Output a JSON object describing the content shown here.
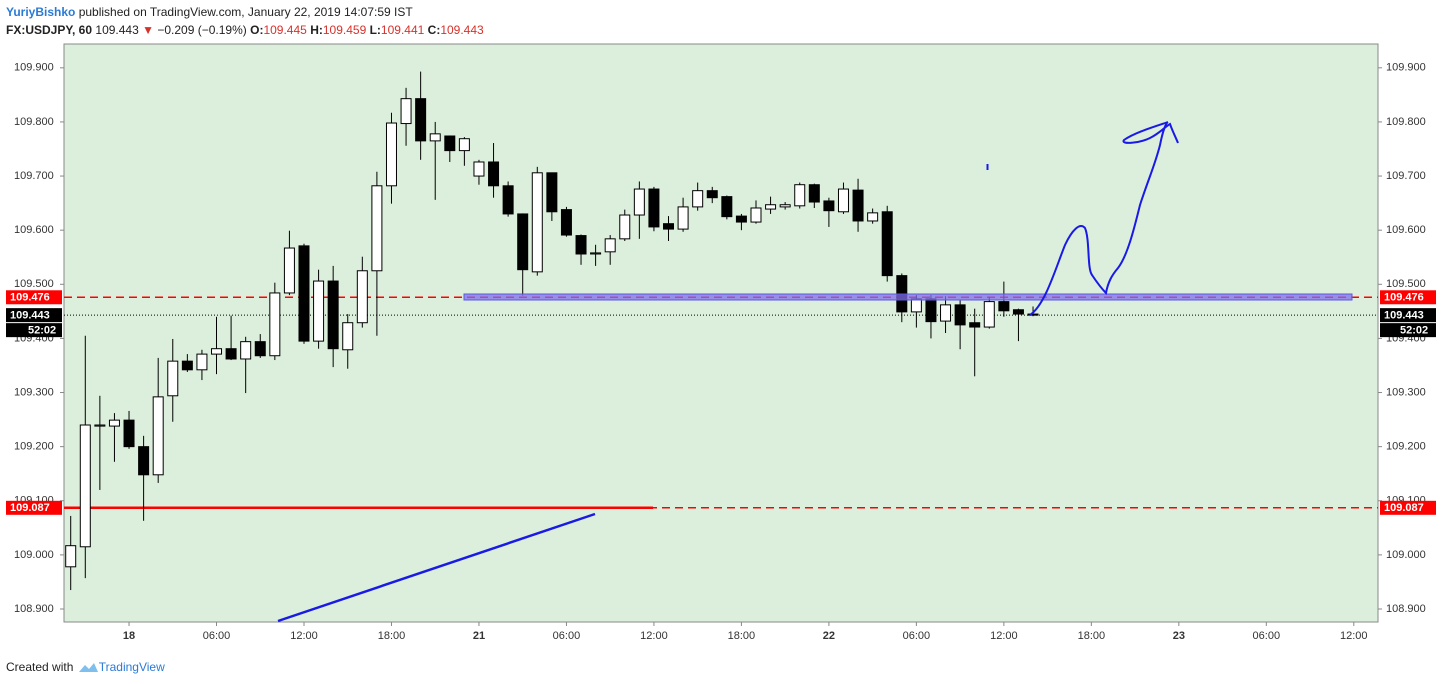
{
  "header": {
    "author": "YuriyBishko",
    "published": "published on TradingView.com, January 22, 2019 14:07:59 IST",
    "symbol": "FX:USDJPY, 60",
    "last": "109.443",
    "arrow": "▼",
    "change": "−0.209 (−0.19%)",
    "ohlc": [
      {
        "label": "O:",
        "value": "109.445"
      },
      {
        "label": "H:",
        "value": "109.459"
      },
      {
        "label": "L:",
        "value": "109.441"
      },
      {
        "label": "C:",
        "value": "109.443"
      }
    ]
  },
  "footer": {
    "text": "Created with",
    "brand": "TradingView"
  },
  "chart_data": {
    "type": "candlestick",
    "x": [
      -4,
      -3,
      -2,
      -1,
      0,
      1,
      2,
      3,
      4,
      5,
      6,
      7,
      8,
      9,
      10,
      11,
      12,
      13,
      14,
      15,
      16,
      17,
      18,
      19,
      20,
      21,
      22,
      23,
      24,
      25,
      26,
      27,
      28,
      29,
      30,
      31,
      32,
      33,
      34,
      35,
      36,
      37,
      38,
      39,
      40,
      41,
      42,
      43,
      44,
      45,
      46,
      47,
      48,
      49,
      50,
      51,
      52,
      53,
      54,
      55,
      56,
      57,
      58,
      59,
      60,
      61,
      62
    ],
    "open": [
      108.978,
      109.015,
      109.238,
      109.238,
      109.249,
      109.2,
      109.148,
      109.294,
      109.358,
      109.342,
      109.371,
      109.381,
      109.362,
      109.394,
      109.368,
      109.484,
      109.571,
      109.395,
      109.506,
      109.379,
      109.429,
      109.525,
      109.682,
      109.797,
      109.843,
      109.765,
      109.774,
      109.747,
      109.7,
      109.726,
      109.682,
      109.63,
      109.523,
      109.706,
      109.638,
      109.59,
      109.556,
      109.56,
      109.584,
      109.628,
      109.676,
      109.612,
      109.602,
      109.643,
      109.673,
      109.662,
      109.626,
      109.615,
      109.639,
      109.643,
      109.645,
      109.684,
      109.654,
      109.634,
      109.674,
      109.617,
      109.634,
      109.516,
      109.449,
      109.473,
      109.432,
      109.462,
      109.429,
      109.421,
      109.468,
      109.453,
      109.445
    ],
    "high": [
      109.072,
      109.405,
      109.294,
      109.262,
      109.266,
      109.22,
      109.364,
      109.399,
      109.371,
      109.379,
      109.44,
      109.442,
      109.403,
      109.408,
      109.503,
      109.599,
      109.575,
      109.527,
      109.534,
      109.445,
      109.551,
      109.708,
      109.817,
      109.863,
      109.893,
      109.8,
      109.775,
      109.772,
      109.73,
      109.761,
      109.69,
      109.631,
      109.717,
      109.706,
      109.643,
      109.592,
      109.573,
      109.591,
      109.638,
      109.69,
      109.68,
      109.626,
      109.66,
      109.688,
      109.68,
      109.664,
      109.63,
      109.655,
      109.662,
      109.652,
      109.688,
      109.686,
      109.66,
      109.688,
      109.695,
      109.64,
      109.645,
      109.52,
      109.48,
      109.48,
      109.478,
      109.47,
      109.455,
      109.476,
      109.505,
      109.455,
      109.459
    ],
    "low": [
      108.935,
      108.957,
      109.12,
      109.172,
      109.196,
      109.063,
      109.133,
      109.246,
      109.338,
      109.323,
      109.334,
      109.36,
      109.299,
      109.364,
      109.36,
      109.48,
      109.39,
      109.381,
      109.347,
      109.344,
      109.42,
      109.405,
      109.649,
      109.756,
      109.73,
      109.656,
      109.726,
      109.719,
      109.684,
      109.66,
      109.625,
      109.479,
      109.516,
      109.617,
      109.588,
      109.536,
      109.534,
      109.536,
      109.58,
      109.584,
      109.598,
      109.58,
      109.597,
      109.636,
      109.65,
      109.62,
      109.6,
      109.612,
      109.63,
      109.638,
      109.64,
      109.641,
      109.606,
      109.63,
      109.597,
      109.612,
      109.505,
      109.43,
      109.42,
      109.4,
      109.41,
      109.38,
      109.33,
      109.418,
      109.44,
      109.395,
      109.441
    ],
    "close": [
      109.017,
      109.24,
      109.24,
      109.249,
      109.2,
      109.148,
      109.292,
      109.358,
      109.342,
      109.371,
      109.381,
      109.362,
      109.394,
      109.368,
      109.484,
      109.567,
      109.395,
      109.506,
      109.381,
      109.429,
      109.525,
      109.682,
      109.798,
      109.843,
      109.765,
      109.778,
      109.747,
      109.769,
      109.726,
      109.682,
      109.63,
      109.527,
      109.706,
      109.634,
      109.591,
      109.556,
      109.558,
      109.584,
      109.628,
      109.676,
      109.606,
      109.602,
      109.643,
      109.673,
      109.66,
      109.625,
      109.615,
      109.641,
      109.647,
      109.647,
      109.684,
      109.652,
      109.636,
      109.676,
      109.617,
      109.632,
      109.516,
      109.449,
      109.473,
      109.431,
      109.462,
      109.425,
      109.421,
      109.468,
      109.451,
      109.445,
      109.443
    ],
    "up_color": "#ffffff",
    "down_color": "#000000",
    "xlim": [
      -4.46,
      85.66
    ],
    "xticks": [
      {
        "value": 0,
        "label": "18"
      },
      {
        "value": 6,
        "label": "06:00"
      },
      {
        "value": 12,
        "label": "12:00"
      },
      {
        "value": 18,
        "label": "18:00"
      },
      {
        "value": 24,
        "label": "21"
      },
      {
        "value": 30,
        "label": "06:00"
      },
      {
        "value": 36,
        "label": "12:00"
      },
      {
        "value": 42,
        "label": "18:00"
      },
      {
        "value": 48,
        "label": "22"
      },
      {
        "value": 54,
        "label": "06:00"
      },
      {
        "value": 60,
        "label": "12:00"
      },
      {
        "value": 66,
        "label": "18:00"
      },
      {
        "value": 72,
        "label": "23"
      },
      {
        "value": 78,
        "label": "06:00"
      },
      {
        "value": 84,
        "label": "12:00"
      }
    ],
    "ylim": [
      108.876,
      109.944
    ],
    "yticks": [
      {
        "value": 108.9,
        "label": "108.900"
      },
      {
        "value": 109,
        "label": "109.000"
      },
      {
        "value": 109.1,
        "label": "109.100"
      },
      {
        "value": 109.2,
        "label": "109.200"
      },
      {
        "value": 109.3,
        "label": "109.300"
      },
      {
        "value": 109.4,
        "label": "109.400"
      },
      {
        "value": 109.5,
        "label": "109.500"
      },
      {
        "value": 109.6,
        "label": "109.600"
      },
      {
        "value": 109.7,
        "label": "109.700"
      },
      {
        "value": 109.8,
        "label": "109.800"
      },
      {
        "value": 109.9,
        "label": "109.900"
      }
    ],
    "grid": false,
    "levels": [
      {
        "value": 109.476,
        "color": "#ff0000",
        "style": "dashed"
      },
      {
        "value": 109.443,
        "color": "#000000",
        "style": "dotted"
      },
      {
        "value": 109.087,
        "color": "#ff0000",
        "style": "dashed"
      }
    ],
    "countdown": "52:02"
  }
}
